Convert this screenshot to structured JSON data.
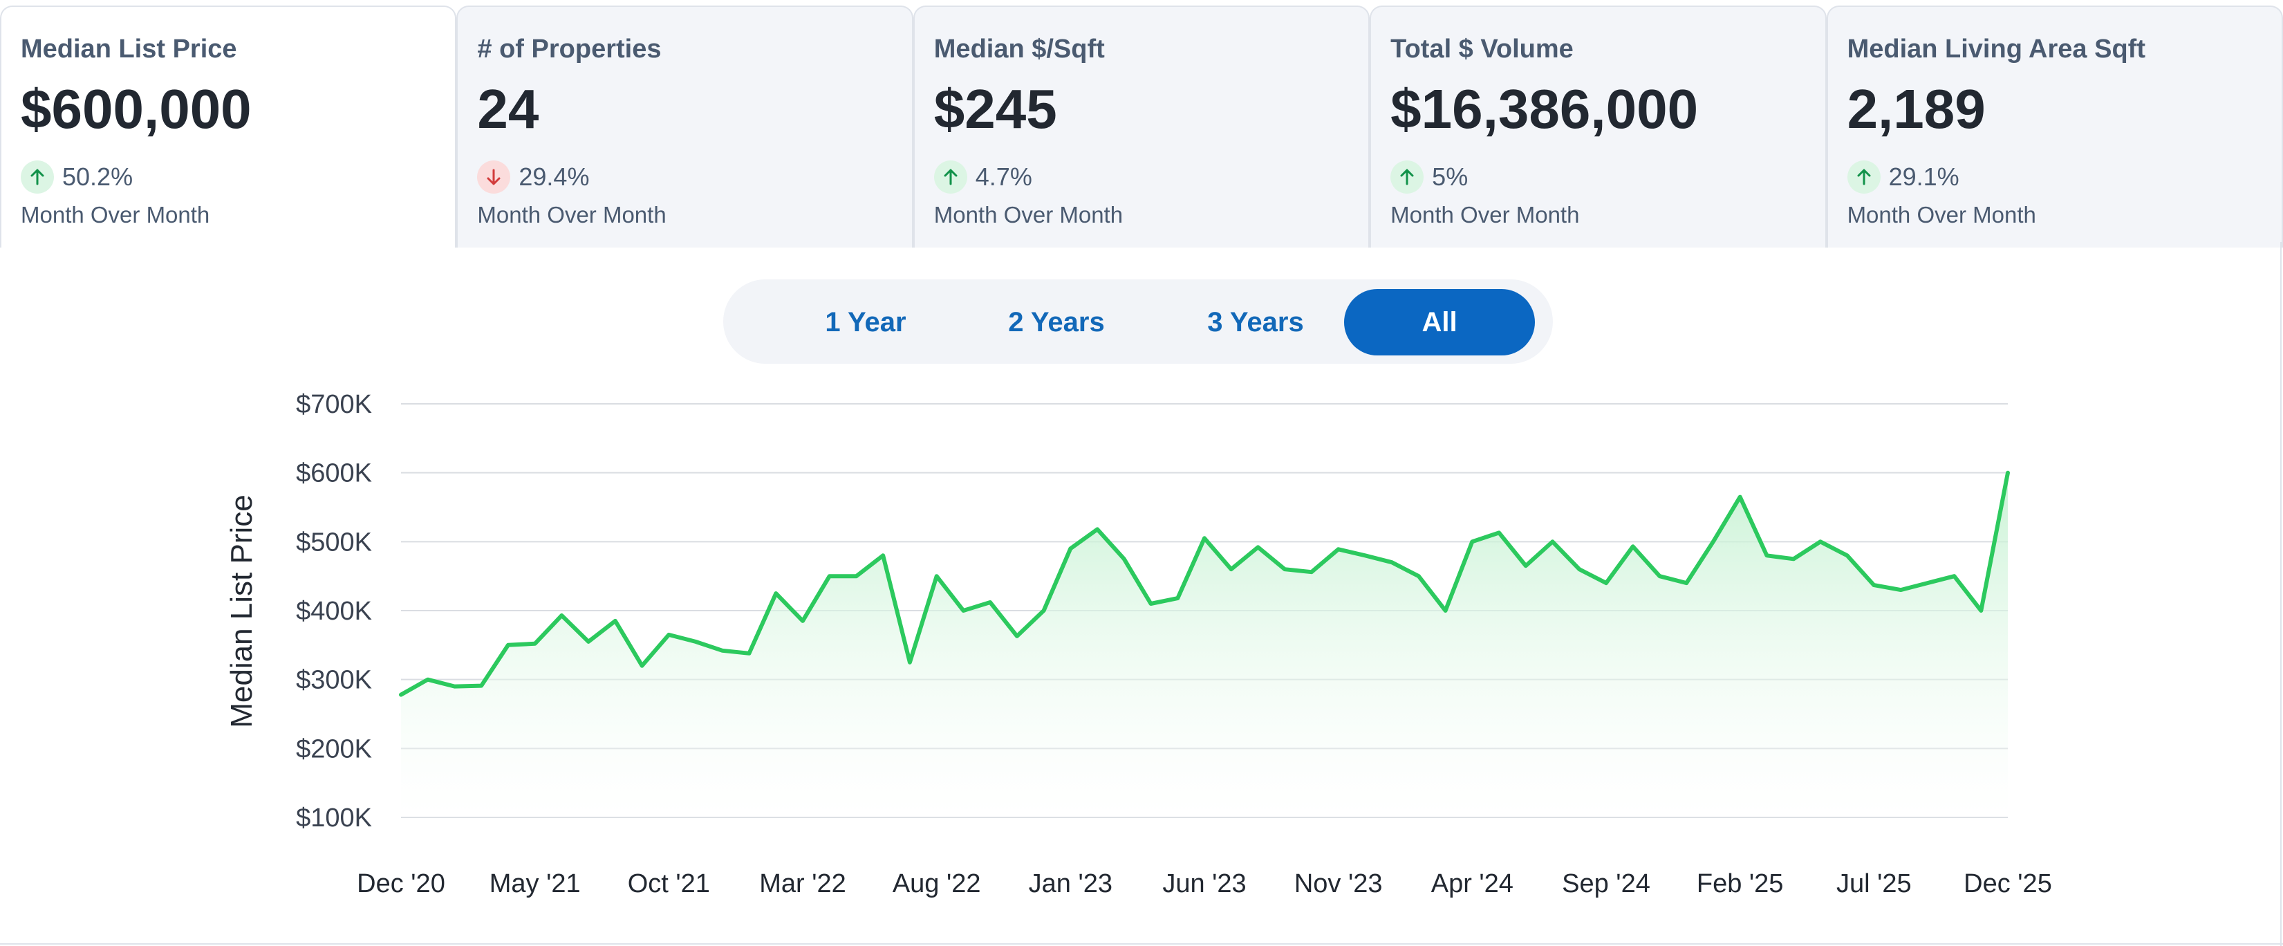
{
  "cards": [
    {
      "label": "Median List Price",
      "value": "$600,000",
      "direction": "up",
      "change": "50.2%",
      "sub": "Month Over Month",
      "active": true
    },
    {
      "label": "# of Properties",
      "value": "24",
      "direction": "down",
      "change": "29.4%",
      "sub": "Month Over Month",
      "active": false
    },
    {
      "label": "Median $/Sqft",
      "value": "$245",
      "direction": "up",
      "change": "4.7%",
      "sub": "Month Over Month",
      "active": false
    },
    {
      "label": "Total $ Volume",
      "value": "$16,386,000",
      "direction": "up",
      "change": "5%",
      "sub": "Month Over Month",
      "active": false
    },
    {
      "label": "Median Living Area Sqft",
      "value": "2,189",
      "direction": "up",
      "change": "29.1%",
      "sub": "Month Over Month",
      "active": false
    }
  ],
  "range_options": [
    "1 Year",
    "2 Years",
    "3 Years",
    "All"
  ],
  "range_selected": "All",
  "colors": {
    "line": "#2cc95e",
    "fill_top": "#bff0cd",
    "grid": "#dadde2",
    "selected": "#0b67c2",
    "up": "#12924a",
    "down": "#d23c3c"
  },
  "chart_data": {
    "type": "area",
    "ylabel": "Median List Price",
    "ylim": [
      100000,
      700000
    ],
    "y_ticks": [
      {
        "value": 700000,
        "label": "$700K"
      },
      {
        "value": 600000,
        "label": "$600K"
      },
      {
        "value": 500000,
        "label": "$500K"
      },
      {
        "value": 400000,
        "label": "$400K"
      },
      {
        "value": 300000,
        "label": "$300K"
      },
      {
        "value": 200000,
        "label": "$200K"
      },
      {
        "value": 100000,
        "label": "$100K"
      }
    ],
    "x_ticks": [
      "Dec '20",
      "May '21",
      "Oct '21",
      "Mar '22",
      "Aug '22",
      "Jan '23",
      "Jun '23",
      "Nov '23",
      "Apr '24",
      "Sep '24",
      "Feb '25",
      "Jul '25",
      "Dec '25"
    ],
    "x": [
      "Dec '20",
      "Jan '21",
      "Feb '21",
      "Mar '21",
      "Apr '21",
      "May '21",
      "Jun '21",
      "Jul '21",
      "Aug '21",
      "Sep '21",
      "Oct '21",
      "Nov '21",
      "Dec '21",
      "Jan '22",
      "Feb '22",
      "Mar '22",
      "Apr '22",
      "May '22",
      "Jun '22",
      "Jul '22",
      "Aug '22",
      "Sep '22",
      "Oct '22",
      "Nov '22",
      "Dec '22",
      "Jan '23",
      "Feb '23",
      "Mar '23",
      "Apr '23",
      "May '23",
      "Jun '23",
      "Jul '23",
      "Aug '23",
      "Sep '23",
      "Oct '23",
      "Nov '23",
      "Dec '23",
      "Jan '24",
      "Feb '24",
      "Mar '24",
      "Apr '24",
      "May '24",
      "Jun '24",
      "Jul '24",
      "Aug '24",
      "Sep '24",
      "Oct '24",
      "Nov '24",
      "Dec '24",
      "Jan '25",
      "Feb '25",
      "Mar '25",
      "Apr '25",
      "May '25",
      "Jun '25",
      "Jul '25",
      "Aug '25",
      "Sep '25",
      "Oct '25",
      "Nov '25",
      "Dec '25"
    ],
    "series": [
      {
        "name": "Median List Price",
        "values": [
          278000,
          300000,
          290000,
          291000,
          350000,
          352000,
          393000,
          355000,
          385000,
          320000,
          365000,
          355000,
          342000,
          338000,
          425000,
          385000,
          450000,
          450000,
          480000,
          325000,
          450000,
          400000,
          412000,
          363000,
          400000,
          490000,
          518000,
          475000,
          410000,
          418000,
          505000,
          460000,
          492000,
          460000,
          456000,
          489000,
          480000,
          470000,
          450000,
          400000,
          500000,
          513000,
          465000,
          500000,
          460000,
          440000,
          493000,
          450000,
          440000,
          500000,
          565000,
          480000,
          475000,
          500000,
          480000,
          437000,
          430000,
          440000,
          450000,
          400000,
          600000
        ]
      }
    ]
  }
}
